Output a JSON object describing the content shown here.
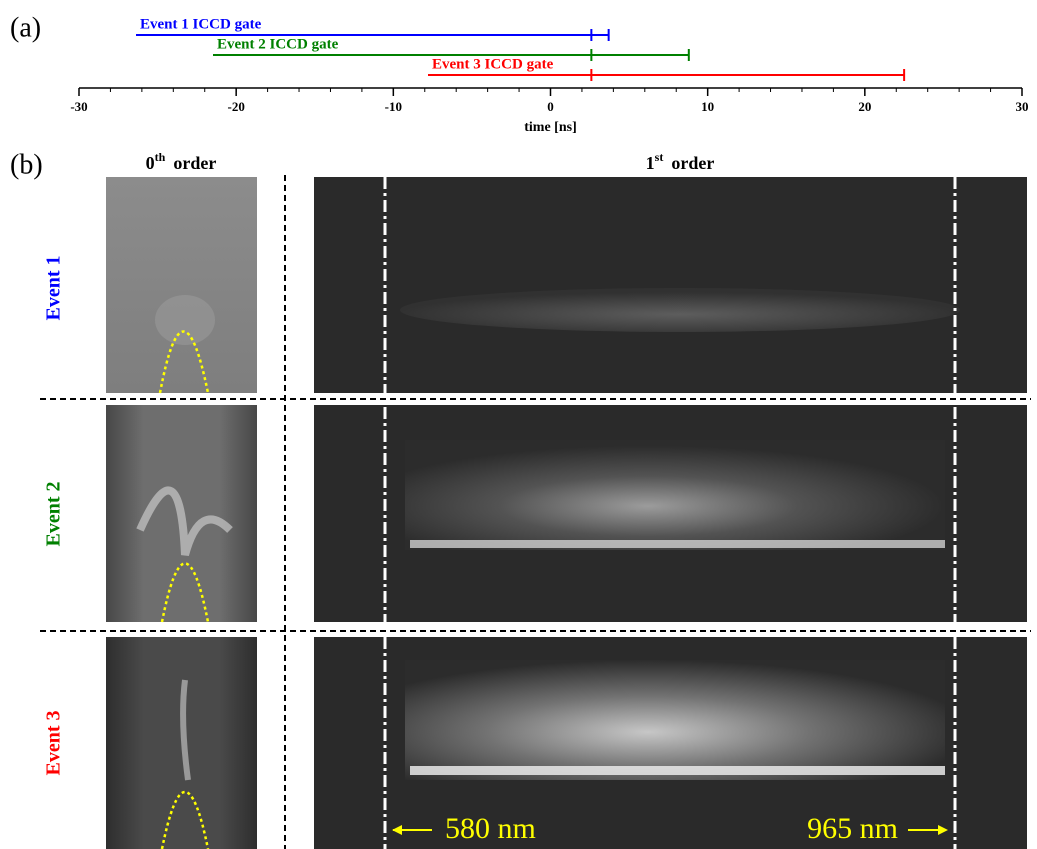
{
  "chart_data": {
    "type": "gate",
    "panel_label": "(a)",
    "xlabel": "time [ns]",
    "xlim": [
      -30,
      30
    ],
    "xticks": [
      -30,
      -20,
      -10,
      0,
      10,
      20,
      30
    ],
    "minor_xtick_step": 2,
    "series": [
      {
        "name": "Event 1 ICCD gate",
        "color": "#0000ff",
        "gate_start": 2.6,
        "gate_end": 3.7
      },
      {
        "name": "Event 2 ICCD gate",
        "color": "#008000",
        "gate_start": 2.6,
        "gate_end": 8.8
      },
      {
        "name": "Event 3 ICCD gate",
        "color": "#ff0000",
        "gate_start": 2.6,
        "gate_end": 22.5
      }
    ]
  },
  "panel_b": {
    "label": "(b)",
    "zeroth_title": {
      "base": "0",
      "sup": "th",
      "text": "order"
    },
    "first_title": {
      "base": "1",
      "sup": "st",
      "text": "order"
    },
    "rows": [
      {
        "label": "Event 1",
        "color": "#0000ff"
      },
      {
        "label": "Event 2",
        "color": "#008000"
      },
      {
        "label": "Event 3",
        "color": "#ff0000"
      }
    ],
    "wavelength_labels": [
      "580 nm",
      "965 nm"
    ]
  }
}
